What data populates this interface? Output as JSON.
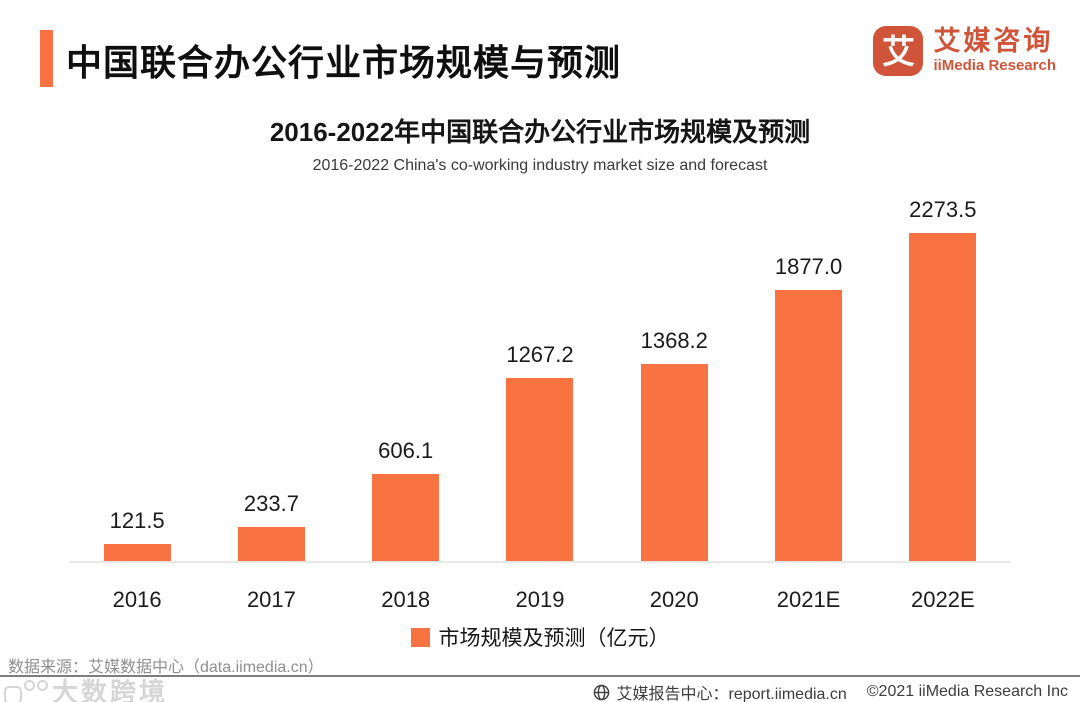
{
  "header": {
    "title": "中国联合办公行业市场规模与预测",
    "logo": {
      "glyph": "艾",
      "name_cn": "艾媒咨询",
      "name_en": "iiMedia Research"
    }
  },
  "chart_data": {
    "type": "bar",
    "title": "2016-2022年中国联合办公行业市场规模及预测",
    "subtitle": "2016-2022 China's co-working industry market size and forecast",
    "categories": [
      "2016",
      "2017",
      "2018",
      "2019",
      "2020",
      "2021E",
      "2022E"
    ],
    "values": [
      121.5,
      233.7,
      606.1,
      1267.2,
      1368.2,
      1877.0,
      2273.5
    ],
    "value_labels": [
      "121.5",
      "233.7",
      "606.1",
      "1267.2",
      "1368.2",
      "1877.0",
      "2273.5"
    ],
    "legend": "市场规模及预测（亿元）",
    "legend_position": "bottom",
    "unit": "亿元",
    "xlabel": "",
    "ylabel": "",
    "ylim": [
      0,
      2273.5
    ],
    "grid": false,
    "bar_color": "#F87242"
  },
  "footer": {
    "source": "数据来源：艾媒数据中心（data.iimedia.cn）",
    "report_center": "艾媒报告中心：report.iimedia.cn",
    "copyright": "©2021  iiMedia Research Inc",
    "watermark": "大数跨境"
  },
  "colors": {
    "accent": "#F87242",
    "logo": "#D0543A",
    "axis_line": "#E8E8E8"
  }
}
